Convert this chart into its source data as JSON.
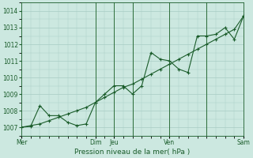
{
  "xlabel": "Pression niveau de la mer( hPa )",
  "bg_color": "#cce8e0",
  "grid_color": "#a8ccc4",
  "line_color": "#1a5c2a",
  "vline_color": "#2d6e3a",
  "ylim": [
    1006.5,
    1014.5
  ],
  "yticks": [
    1007,
    1008,
    1009,
    1010,
    1011,
    1012,
    1013,
    1014
  ],
  "xlim": [
    0,
    144
  ],
  "day_tick_positions": [
    0,
    48,
    60,
    72,
    96,
    120,
    144
  ],
  "day_tick_labels": [
    "Mer",
    "",
    "Dim",
    "Jeu",
    "",
    "Ven",
    "Sam"
  ],
  "vline_positions": [
    48,
    60,
    72,
    96,
    120
  ],
  "jagged_x": [
    0,
    6,
    12,
    18,
    24,
    30,
    36,
    42,
    48,
    54,
    60,
    66,
    72,
    78,
    84,
    90,
    96,
    102,
    108,
    114,
    120,
    126,
    132,
    138,
    144
  ],
  "jagged_y": [
    1007.0,
    1007.05,
    1008.3,
    1007.7,
    1007.7,
    1007.3,
    1007.1,
    1007.2,
    1008.5,
    1009.0,
    1009.5,
    1009.5,
    1009.0,
    1009.5,
    1011.5,
    1011.1,
    1011.0,
    1010.5,
    1010.3,
    1012.5,
    1012.5,
    1012.6,
    1013.0,
    1012.3,
    1013.7
  ],
  "smooth_x": [
    0,
    6,
    12,
    18,
    24,
    30,
    36,
    42,
    48,
    54,
    60,
    66,
    72,
    78,
    84,
    90,
    96,
    102,
    108,
    114,
    120,
    126,
    132,
    138,
    144
  ],
  "smooth_y": [
    1007.0,
    1007.1,
    1007.2,
    1007.4,
    1007.6,
    1007.8,
    1008.0,
    1008.2,
    1008.5,
    1008.8,
    1009.1,
    1009.4,
    1009.6,
    1009.9,
    1010.2,
    1010.5,
    1010.8,
    1011.1,
    1011.4,
    1011.7,
    1012.0,
    1012.3,
    1012.6,
    1012.9,
    1013.7
  ]
}
